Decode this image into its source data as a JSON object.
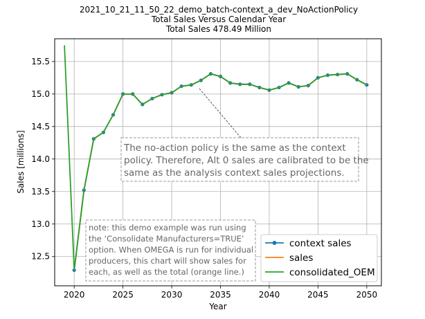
{
  "chart_data": {
    "type": "line",
    "title": "2021_10_21_11_50_22_demo_batch-context_a_dev_NoActionPolicy",
    "subtitle": "Total Sales Versus Calendar Year",
    "subtitle2": "Total Sales 478.49 Million",
    "xlabel": "Year",
    "ylabel": "Sales [millions]",
    "xlim": [
      2018,
      2051.5
    ],
    "ylim": [
      12.05,
      15.85
    ],
    "xticks": [
      2020,
      2025,
      2030,
      2035,
      2040,
      2045,
      2050
    ],
    "yticks": [
      12.5,
      13.0,
      13.5,
      14.0,
      14.5,
      15.0,
      15.5
    ],
    "grid": true,
    "legend_position": "lower-right",
    "series": [
      {
        "name": "context sales",
        "color": "#1f77b4",
        "marker": "circle",
        "x": [
          2020,
          2021,
          2022,
          2023,
          2024,
          2025,
          2026,
          2027,
          2028,
          2029,
          2030,
          2031,
          2032,
          2033,
          2034,
          2035,
          2036,
          2037,
          2038,
          2039,
          2040,
          2041,
          2042,
          2043,
          2044,
          2045,
          2046,
          2047,
          2048,
          2049,
          2050
        ],
        "y": [
          12.29,
          13.52,
          14.31,
          14.41,
          14.68,
          15.0,
          15.0,
          14.84,
          14.93,
          14.99,
          15.02,
          15.12,
          15.14,
          15.21,
          15.31,
          15.27,
          15.17,
          15.15,
          15.15,
          15.1,
          15.06,
          15.1,
          15.17,
          15.11,
          15.13,
          15.25,
          15.29,
          15.3,
          15.31,
          15.22,
          15.14
        ]
      },
      {
        "name": "sales",
        "color": "#ff7f0e",
        "marker": "none",
        "x": [
          2020,
          2021,
          2022,
          2023,
          2024,
          2025,
          2026,
          2027,
          2028,
          2029,
          2030,
          2031,
          2032,
          2033,
          2034,
          2035,
          2036,
          2037,
          2038,
          2039,
          2040,
          2041,
          2042,
          2043,
          2044,
          2045,
          2046,
          2047,
          2048,
          2049,
          2050
        ],
        "y": [
          12.29,
          13.52,
          14.31,
          14.41,
          14.68,
          15.0,
          15.0,
          14.84,
          14.93,
          14.99,
          15.02,
          15.12,
          15.14,
          15.21,
          15.31,
          15.27,
          15.17,
          15.15,
          15.15,
          15.1,
          15.06,
          15.1,
          15.17,
          15.11,
          15.13,
          15.25,
          15.29,
          15.3,
          15.31,
          15.22,
          15.14
        ]
      },
      {
        "name": "consolidated_OEM",
        "color": "#2ca02c",
        "marker": "none",
        "x": [
          2019,
          2020,
          2021,
          2022,
          2023,
          2024,
          2025,
          2026,
          2027,
          2028,
          2029,
          2030,
          2031,
          2032,
          2033,
          2034,
          2035,
          2036,
          2037,
          2038,
          2039,
          2040,
          2041,
          2042,
          2043,
          2044,
          2045,
          2046,
          2047,
          2048,
          2049,
          2050
        ],
        "y": [
          15.75,
          12.29,
          13.52,
          14.31,
          14.41,
          14.68,
          15.0,
          15.0,
          14.84,
          14.93,
          14.99,
          15.02,
          15.12,
          15.14,
          15.21,
          15.31,
          15.27,
          15.17,
          15.15,
          15.15,
          15.1,
          15.06,
          15.1,
          15.17,
          15.11,
          15.13,
          15.25,
          15.29,
          15.3,
          15.31,
          15.22,
          15.14
        ]
      }
    ],
    "annotations": [
      {
        "lines": [
          "The no-action policy is the same as the context",
          "policy. Therefore, Alt 0 sales are calibrated to be the",
          "same as the analysis context sales projections."
        ],
        "points_to": {
          "x": 2032.3,
          "y": 15.14
        }
      },
      {
        "lines": [
          "note: this demo example was run using",
          "the ‘Consolidate Manufacturers=TRUE’",
          "option. When OMEGA is run for individual",
          "producers, this chart will show sales for",
          "each, as well as the total (orange line.)"
        ]
      }
    ]
  }
}
